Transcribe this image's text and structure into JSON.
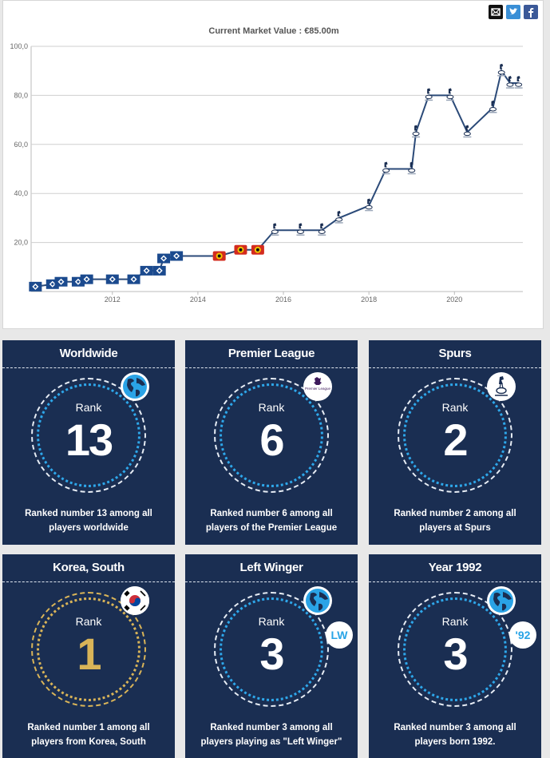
{
  "share": {
    "email_icon": "email-icon",
    "twitter_icon": "twitter-icon",
    "facebook_icon": "facebook-icon"
  },
  "chart_data": {
    "type": "line",
    "title": "Current Market Value : €85.00m",
    "x_ticks": [
      "2012",
      "2014",
      "2016",
      "2018",
      "2020"
    ],
    "y_ticks": [
      "20,0",
      "40,0",
      "60,0",
      "80,0",
      "100,0"
    ],
    "ylim": [
      0,
      100
    ],
    "xlim": [
      2010.1,
      2021.6
    ],
    "grid": true,
    "points": [
      {
        "x": 2010.2,
        "y": 2,
        "club": "Hamburg"
      },
      {
        "x": 2010.6,
        "y": 3,
        "club": "Hamburg"
      },
      {
        "x": 2010.8,
        "y": 4,
        "club": "Hamburg"
      },
      {
        "x": 2011.2,
        "y": 4,
        "club": "Hamburg"
      },
      {
        "x": 2011.4,
        "y": 5,
        "club": "Hamburg"
      },
      {
        "x": 2012.0,
        "y": 5,
        "club": "Hamburg"
      },
      {
        "x": 2012.5,
        "y": 5,
        "club": "Hamburg"
      },
      {
        "x": 2012.8,
        "y": 8.5,
        "club": "Hamburg"
      },
      {
        "x": 2013.1,
        "y": 8.5,
        "club": "Hamburg"
      },
      {
        "x": 2013.2,
        "y": 13.5,
        "club": "Hamburg"
      },
      {
        "x": 2013.5,
        "y": 14.5,
        "club": "Hamburg"
      },
      {
        "x": 2014.5,
        "y": 14.5,
        "club": "Leverkusen"
      },
      {
        "x": 2015.0,
        "y": 17,
        "club": "Leverkusen"
      },
      {
        "x": 2015.4,
        "y": 17,
        "club": "Leverkusen"
      },
      {
        "x": 2015.8,
        "y": 25,
        "club": "Spurs"
      },
      {
        "x": 2016.4,
        "y": 25,
        "club": "Spurs"
      },
      {
        "x": 2016.9,
        "y": 25,
        "club": "Spurs"
      },
      {
        "x": 2017.3,
        "y": 30,
        "club": "Spurs"
      },
      {
        "x": 2018.0,
        "y": 35,
        "club": "Spurs"
      },
      {
        "x": 2018.4,
        "y": 50,
        "club": "Spurs"
      },
      {
        "x": 2019.0,
        "y": 50,
        "club": "Spurs"
      },
      {
        "x": 2019.1,
        "y": 65,
        "club": "Spurs"
      },
      {
        "x": 2019.4,
        "y": 80,
        "club": "Spurs"
      },
      {
        "x": 2019.9,
        "y": 80,
        "club": "Spurs"
      },
      {
        "x": 2020.3,
        "y": 65,
        "club": "Spurs"
      },
      {
        "x": 2020.9,
        "y": 75,
        "club": "Spurs"
      },
      {
        "x": 2021.1,
        "y": 90,
        "club": "Spurs"
      },
      {
        "x": 2021.3,
        "y": 85,
        "club": "Spurs"
      },
      {
        "x": 2021.5,
        "y": 85,
        "club": "Spurs"
      }
    ],
    "line_color": "#2b4a78"
  },
  "cards": [
    {
      "title": "Worldwide",
      "rank_label": "Rank",
      "rank": "13",
      "desc": "Ranked number 13 among all players worldwide",
      "badge": "globe-icon",
      "gold": false
    },
    {
      "title": "Premier League",
      "rank_label": "Rank",
      "rank": "6",
      "desc": "Ranked number 6 among all players of the Premier League",
      "badge": "premier-league-logo-icon",
      "badge_text": "Premier League",
      "gold": false
    },
    {
      "title": "Spurs",
      "rank_label": "Rank",
      "rank": "2",
      "desc": "Ranked number 2 among all players at Spurs",
      "badge": "spurs-crest-icon",
      "gold": false
    },
    {
      "title": "Korea, South",
      "rank_label": "Rank",
      "rank": "1",
      "desc": "Ranked number 1 among all players from Korea, South",
      "badge": "korea-flag-icon",
      "gold": true
    },
    {
      "title": "Left Winger",
      "rank_label": "Rank",
      "rank": "3",
      "desc": "Ranked number 3 among all players playing as \"Left Winger\"",
      "badge": "globe-icon",
      "badge2": "LW",
      "gold": false
    },
    {
      "title": "Year 1992",
      "rank_label": "Rank",
      "rank": "3",
      "desc_prefix": "Ranked number 3 among all players ",
      "desc_bold": "born 1992",
      "desc_suffix": ".",
      "badge": "globe-icon",
      "badge2": "'92",
      "gold": false
    }
  ],
  "colors": {
    "card_bg": "#1a2e52",
    "accent_blue": "#2ea7ea",
    "gold": "#d9b458"
  }
}
